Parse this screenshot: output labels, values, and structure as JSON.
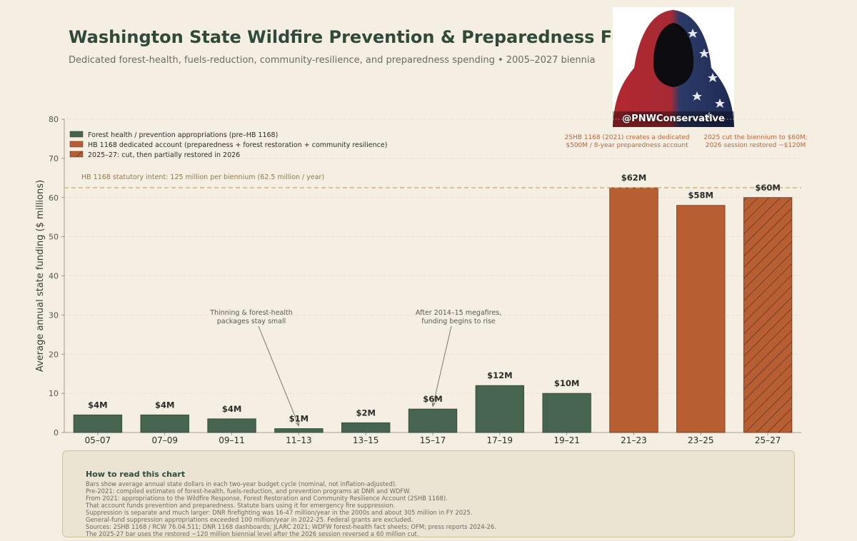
{
  "header": {
    "title": "Washington State Wildfire Prevention & Preparedness Funding",
    "subtitle": "Dedicated forest-health, fuels-reduction, community-resilience, and preparedness spending  •  2005–2027 biennia"
  },
  "avatar": {
    "label": "@PNWConservative"
  },
  "chart_data": {
    "type": "bar",
    "ylabel": "Average annual state funding  ($ millions)",
    "ylim": [
      0,
      80
    ],
    "yticks": [
      0,
      10,
      20,
      30,
      40,
      50,
      60,
      70,
      80
    ],
    "grid": true,
    "categories": [
      "05–07",
      "07–09",
      "09–11",
      "11–13",
      "13–15",
      "15–17",
      "17–19",
      "19–21",
      "21–23",
      "23–25",
      "25–27"
    ],
    "values": [
      4.5,
      4.5,
      3.5,
      1,
      2.5,
      6,
      12,
      10,
      62.5,
      58,
      60
    ],
    "data_labels": [
      "$4M",
      "$4M",
      "$4M",
      "$1M",
      "$2M",
      "$6M",
      "$12M",
      "$10M",
      "$62M",
      "$58M",
      "$60M"
    ],
    "bar_groups": [
      "pre",
      "pre",
      "pre",
      "pre",
      "pre",
      "pre",
      "pre",
      "pre",
      "hb",
      "hb",
      "cut"
    ],
    "legend": {
      "placement": "top-left",
      "items": [
        {
          "key": "pre",
          "label": "Forest health / prevention appropriations (pre–HB 1168)",
          "color": "#466551"
        },
        {
          "key": "hb",
          "label": "HB 1168 dedicated account (preparedness + forest restoration + community resilience)",
          "color": "#b85e33"
        },
        {
          "key": "cut",
          "label": "2025–27: cut, then partially restored in 2026",
          "color": "#b85e33"
        }
      ]
    },
    "reference_line": {
      "value": 62.5,
      "label": "HB 1168 statutory intent:  125 million per biennium  (62.5 million / year)",
      "color": "#c9a85a"
    },
    "annotations": [
      {
        "lines": [
          "Thinning & forest-health",
          "packages stay small"
        ],
        "category_index": 3
      },
      {
        "lines": [
          "After 2014–15 megafires,",
          "funding begins to rise"
        ],
        "category_index": 5
      }
    ],
    "top_notes": [
      {
        "lines": [
          "2SHB 1168 (2021) creates a dedicated",
          "$500M / 8-year preparedness account"
        ]
      },
      {
        "lines": [
          "2025 cut the biennium to $60M;",
          "2026 session restored ~$120M"
        ]
      }
    ]
  },
  "notes": {
    "title": "How to read this chart",
    "lines": [
      "Bars show average annual state dollars in each two-year budget cycle (nominal, not inflation-adjusted).",
      "Pre-2021: compiled estimates of forest-health, fuels-reduction, and prevention programs at DNR and WDFW.",
      "From 2021: appropriations to the Wildfire Response, Forest Restoration and Community Resilience Account (2SHB 1168).",
      "That account funds prevention and preparedness. Statute bars using it for emergency fire suppression.",
      "Suppression is separate and much larger: DNR firefighting was 16-47 million/year in the 2000s and about 305 million in FY 2025.",
      "General-fund suppression appropriations exceeded 100 million/year in 2022-25. Federal grants are excluded.",
      "Sources: 2SHB 1168 / RCW 76.04.511; DNR 1168 dashboards; JLARC 2021; WDFW forest-health fact sheets; OFM; press reports 2024-26.",
      "The 2025-27 bar uses the restored ~120 million biennial level after the 2026 session reversed a 60 million cut."
    ]
  }
}
